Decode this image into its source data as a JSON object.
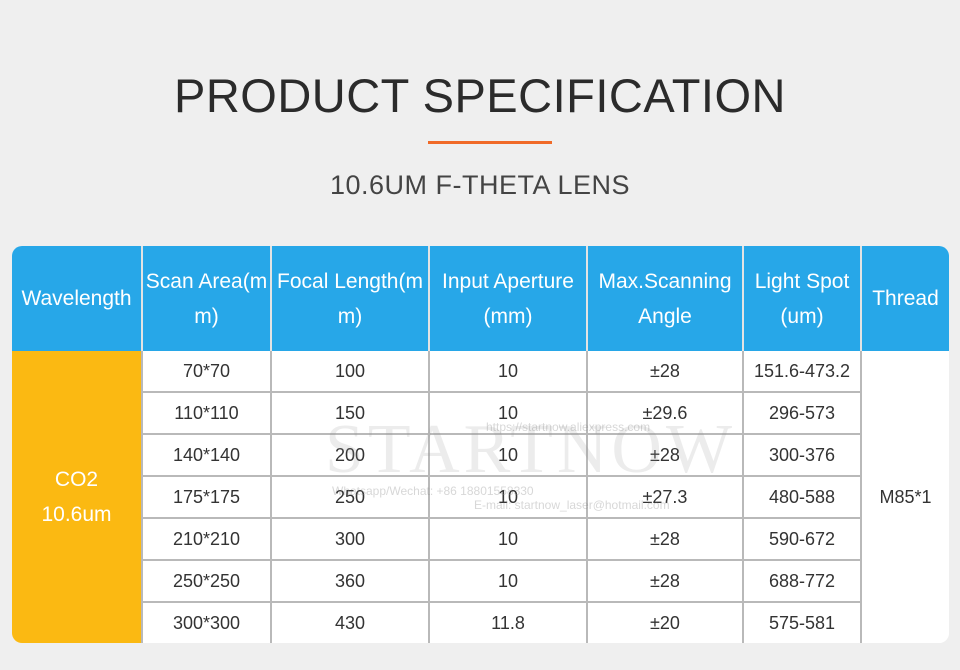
{
  "title": "PRODUCT SPECIFICATION",
  "subtitle": "10.6UM F-THETA LENS",
  "accent_color": "#f06a28",
  "header_color": "#27a7e8",
  "wavelength_color": "#fbb912",
  "table": {
    "headers": [
      "Wavelength",
      "Scan Area(mm)",
      "Focal Length(mm)",
      "Input Aperture (mm)",
      "Max.Scanning Angle",
      "Light Spot(um)",
      "Thread"
    ],
    "wavelength": [
      "CO2",
      "10.6um"
    ],
    "thread": "M85*1",
    "rows": [
      [
        "70*70",
        "100",
        "10",
        "±28",
        "151.6-473.2"
      ],
      [
        "110*110",
        "150",
        "10",
        "±29.6",
        "296-573"
      ],
      [
        "140*140",
        "200",
        "10",
        "±28",
        "300-376"
      ],
      [
        "175*175",
        "250",
        "10",
        "±27.3",
        "480-588"
      ],
      [
        "210*210",
        "300",
        "10",
        "±28",
        "590-672"
      ],
      [
        "250*250",
        "360",
        "10",
        "±28",
        "688-772"
      ],
      [
        "300*300",
        "430",
        "11.8",
        "±20",
        "575-581"
      ]
    ]
  },
  "watermark": {
    "brand": "STARTNOW",
    "url": "https://startnow.aliexpress.com",
    "contact": "Whatsapp/Wechat: +86 18801558330",
    "email": "E-mail: startnow_laser@hotmail.com"
  }
}
